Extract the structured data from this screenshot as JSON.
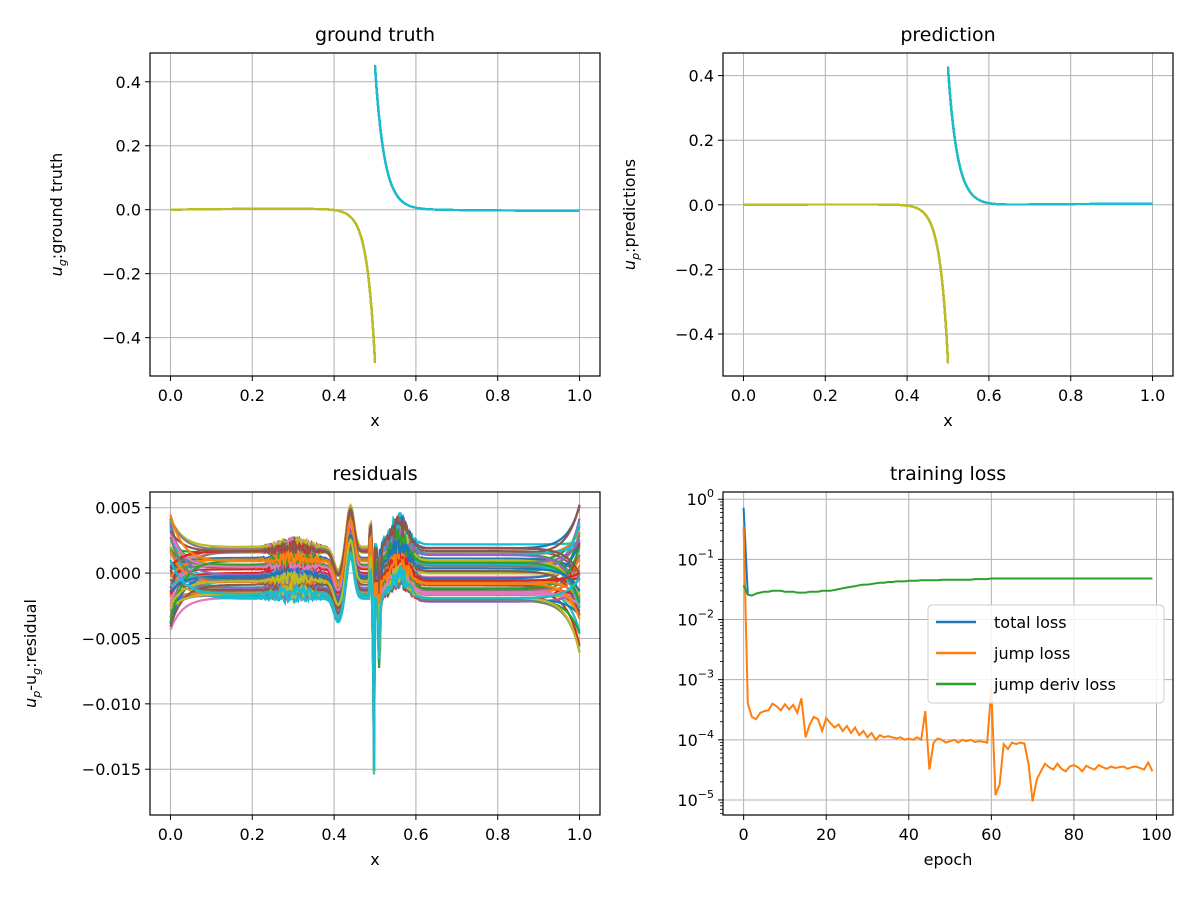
{
  "chart_data": [
    {
      "type": "line",
      "title": "ground truth",
      "xlabel": "x",
      "ylabel": {
        "base": "u",
        "sub": "g",
        "rest": ":ground truth"
      },
      "xlim": [
        -0.05,
        1.05
      ],
      "ylim": [
        -0.52,
        0.49
      ],
      "xticks": [
        0.0,
        0.2,
        0.4,
        0.6,
        0.8,
        1.0
      ],
      "xtick_labels": [
        "0.0",
        "0.2",
        "0.4",
        "0.6",
        "0.8",
        "1.0"
      ],
      "yticks": [
        -0.4,
        -0.2,
        0.0,
        0.2,
        0.4
      ],
      "ytick_labels": [
        "−0.4",
        "−0.2",
        "0.0",
        "0.2",
        "0.4"
      ],
      "grid": true,
      "description_series": "many overlapping solution curves",
      "left_branch": {
        "x_start": 0.0,
        "x_end": 0.5,
        "y_end": -0.475,
        "decay": 0.02
      },
      "right_branch": {
        "x_start": 0.5,
        "x_end": 1.0,
        "y_start": 0.445,
        "decay": 0.023
      },
      "colors": [
        "#1f77b4",
        "#ff7f0e",
        "#2ca02c",
        "#d62728",
        "#9467bd",
        "#8c564b",
        "#e377c2",
        "#7f7f7f",
        "#bcbd22",
        "#17becf"
      ]
    },
    {
      "type": "line",
      "title": "prediction",
      "xlabel": "x",
      "ylabel": {
        "base": "u",
        "sub": "p",
        "rest": ":predictions"
      },
      "xlim": [
        -0.05,
        1.05
      ],
      "ylim": [
        -0.53,
        0.47
      ],
      "xticks": [
        0.0,
        0.2,
        0.4,
        0.6,
        0.8,
        1.0
      ],
      "xtick_labels": [
        "0.0",
        "0.2",
        "0.4",
        "0.6",
        "0.8",
        "1.0"
      ],
      "yticks": [
        -0.4,
        -0.2,
        0.0,
        0.2,
        0.4
      ],
      "ytick_labels": [
        "−0.4",
        "−0.2",
        "0.0",
        "0.2",
        "0.4"
      ],
      "grid": true,
      "left_branch": {
        "x_start": 0.0,
        "x_end": 0.5,
        "y_end": -0.485,
        "decay": 0.02
      },
      "right_branch": {
        "x_start": 0.5,
        "x_end": 1.0,
        "y_start": 0.425,
        "decay": 0.023
      },
      "colors": [
        "#1f77b4",
        "#ff7f0e",
        "#2ca02c",
        "#d62728",
        "#9467bd",
        "#8c564b",
        "#e377c2",
        "#7f7f7f",
        "#bcbd22",
        "#17becf"
      ]
    },
    {
      "type": "line",
      "title": "residuals",
      "xlabel": "x",
      "ylabel": {
        "base": "u",
        "sub": "p",
        "mid": "-u",
        "sub2": "g",
        "rest": ":residual"
      },
      "xlim": [
        -0.05,
        1.05
      ],
      "ylim": [
        -0.0185,
        0.0062
      ],
      "xticks": [
        0.0,
        0.2,
        0.4,
        0.6,
        0.8,
        1.0
      ],
      "xtick_labels": [
        "0.0",
        "0.2",
        "0.4",
        "0.6",
        "0.8",
        "1.0"
      ],
      "yticks": [
        -0.015,
        -0.01,
        -0.005,
        0.0,
        0.005
      ],
      "ytick_labels": [
        "−0.015",
        "−0.010",
        "−0.005",
        "0.000",
        "0.005"
      ],
      "grid": true,
      "spike": {
        "x": 0.5,
        "min": -0.0175
      },
      "colors": [
        "#1f77b4",
        "#ff7f0e",
        "#2ca02c",
        "#d62728",
        "#9467bd",
        "#8c564b",
        "#e377c2",
        "#7f7f7f",
        "#bcbd22",
        "#17becf"
      ]
    },
    {
      "type": "line",
      "title": "training loss",
      "xlabel": "epoch",
      "ylabel": "",
      "yscale": "log",
      "xlim": [
        -5,
        104
      ],
      "ylim_log10": [
        -5.25,
        0.12
      ],
      "xticks": [
        0,
        20,
        40,
        60,
        80,
        100
      ],
      "xtick_labels": [
        "0",
        "20",
        "40",
        "60",
        "80",
        "100"
      ],
      "yticks_log10": [
        -5,
        -4,
        -3,
        -2,
        -1,
        0
      ],
      "ytick_labels": [
        {
          "base": "10",
          "exp": "−5"
        },
        {
          "base": "10",
          "exp": "−4"
        },
        {
          "base": "10",
          "exp": "−3"
        },
        {
          "base": "10",
          "exp": "−2"
        },
        {
          "base": "10",
          "exp": "−1"
        },
        {
          "base": "10",
          "exp": "0"
        }
      ],
      "grid": true,
      "legend_position": "center-right",
      "series": [
        {
          "name": "total loss",
          "color": "#1f77b4",
          "x": [
            0,
            1
          ],
          "y": [
            0.72,
            0.026
          ]
        },
        {
          "name": "jump loss",
          "color": "#ff7f0e",
          "x": [
            0,
            1,
            2,
            3,
            4,
            5,
            6,
            7,
            8,
            9,
            10,
            11,
            12,
            13,
            14,
            15,
            16,
            17,
            18,
            19,
            20,
            21,
            22,
            23,
            24,
            25,
            26,
            27,
            28,
            29,
            30,
            31,
            32,
            33,
            34,
            35,
            36,
            37,
            38,
            39,
            40,
            41,
            42,
            43,
            44,
            45,
            46,
            47,
            48,
            49,
            50,
            51,
            52,
            53,
            54,
            55,
            56,
            57,
            58,
            59,
            60,
            61,
            62,
            63,
            64,
            65,
            66,
            67,
            68,
            69,
            70,
            71,
            72,
            73,
            74,
            75,
            76,
            77,
            78,
            79,
            80,
            81,
            82,
            83,
            84,
            85,
            86,
            87,
            88,
            89,
            90,
            91,
            92,
            93,
            94,
            95,
            96,
            97,
            98,
            99
          ],
          "y": [
            0.35,
            0.0004,
            0.00024,
            0.00022,
            0.00028,
            0.0003,
            0.00031,
            0.0004,
            0.00036,
            0.00031,
            0.00039,
            0.00032,
            0.00038,
            0.00028,
            0.00049,
            0.00011,
            0.00018,
            0.00024,
            0.00022,
            0.00014,
            0.00023,
            0.00019,
            0.00016,
            0.00018,
            0.00014,
            0.00017,
            0.00013,
            0.00016,
            0.00012,
            0.00014,
            0.00011,
            0.00013,
            0.0001,
            0.00012,
            0.00011,
            0.000115,
            0.00011,
            0.000105,
            0.00011,
            0.0001,
            0.000105,
            0.0001,
            0.00011,
            0.0001,
            0.0003,
            3.2e-05,
            9e-05,
            0.000105,
            0.0001,
            9e-05,
            9.5e-05,
            0.0001,
            9e-05,
            0.0001,
            9.5e-05,
            0.0001,
            9.2e-05,
            9.5e-05,
            9.3e-05,
            9e-05,
            0.0007,
            1.2e-05,
            1.8e-05,
            8.5e-05,
            7e-05,
            9e-05,
            8.5e-05,
            9e-05,
            8.7e-05,
            4e-05,
            9.5e-06,
            2.2e-05,
            3e-05,
            4e-05,
            3.5e-05,
            3.2e-05,
            4e-05,
            3.3e-05,
            3e-05,
            3.6e-05,
            3.8e-05,
            3.5e-05,
            3e-05,
            3.7e-05,
            3.4e-05,
            3.2e-05,
            3.8e-05,
            3.5e-05,
            3.3e-05,
            3.6e-05,
            3.4e-05,
            3.5e-05,
            3.6e-05,
            3.3e-05,
            3.5e-05,
            3.6e-05,
            3.4e-05,
            3.2e-05,
            4.2e-05,
            3e-05
          ]
        },
        {
          "name": "jump deriv loss",
          "color": "#2ca02c",
          "x": [
            0,
            1,
            2,
            3,
            4,
            5,
            6,
            7,
            8,
            9,
            10,
            11,
            12,
            13,
            14,
            15,
            16,
            17,
            18,
            19,
            20,
            21,
            22,
            23,
            24,
            25,
            26,
            27,
            28,
            29,
            30,
            31,
            32,
            33,
            34,
            35,
            36,
            37,
            38,
            39,
            40,
            41,
            42,
            43,
            44,
            45,
            46,
            47,
            48,
            49,
            50,
            51,
            52,
            53,
            54,
            55,
            56,
            57,
            58,
            59,
            60,
            61,
            62,
            63,
            64,
            65,
            66,
            67,
            68,
            69,
            70,
            71,
            72,
            73,
            74,
            75,
            76,
            77,
            78,
            79,
            80,
            81,
            82,
            83,
            84,
            85,
            86,
            87,
            88,
            89,
            90,
            91,
            92,
            93,
            94,
            95,
            96,
            97,
            98,
            99
          ],
          "y": [
            0.037,
            0.026,
            0.025,
            0.027,
            0.028,
            0.029,
            0.029,
            0.03,
            0.03,
            0.03,
            0.029,
            0.029,
            0.029,
            0.028,
            0.028,
            0.028,
            0.029,
            0.029,
            0.029,
            0.03,
            0.03,
            0.03,
            0.031,
            0.032,
            0.033,
            0.034,
            0.035,
            0.036,
            0.037,
            0.038,
            0.038,
            0.039,
            0.04,
            0.041,
            0.041,
            0.042,
            0.042,
            0.043,
            0.043,
            0.043,
            0.044,
            0.044,
            0.044,
            0.045,
            0.045,
            0.045,
            0.045,
            0.045,
            0.046,
            0.046,
            0.046,
            0.046,
            0.046,
            0.046,
            0.046,
            0.046,
            0.047,
            0.047,
            0.047,
            0.047,
            0.048,
            0.048,
            0.048,
            0.048,
            0.048,
            0.048,
            0.048,
            0.048,
            0.048,
            0.048,
            0.048,
            0.048,
            0.048,
            0.048,
            0.048,
            0.048,
            0.048,
            0.048,
            0.048,
            0.048,
            0.048,
            0.048,
            0.048,
            0.048,
            0.048,
            0.048,
            0.048,
            0.048,
            0.048,
            0.048,
            0.048,
            0.048,
            0.048,
            0.048,
            0.048,
            0.048,
            0.048,
            0.048,
            0.048,
            0.048
          ]
        }
      ]
    }
  ]
}
